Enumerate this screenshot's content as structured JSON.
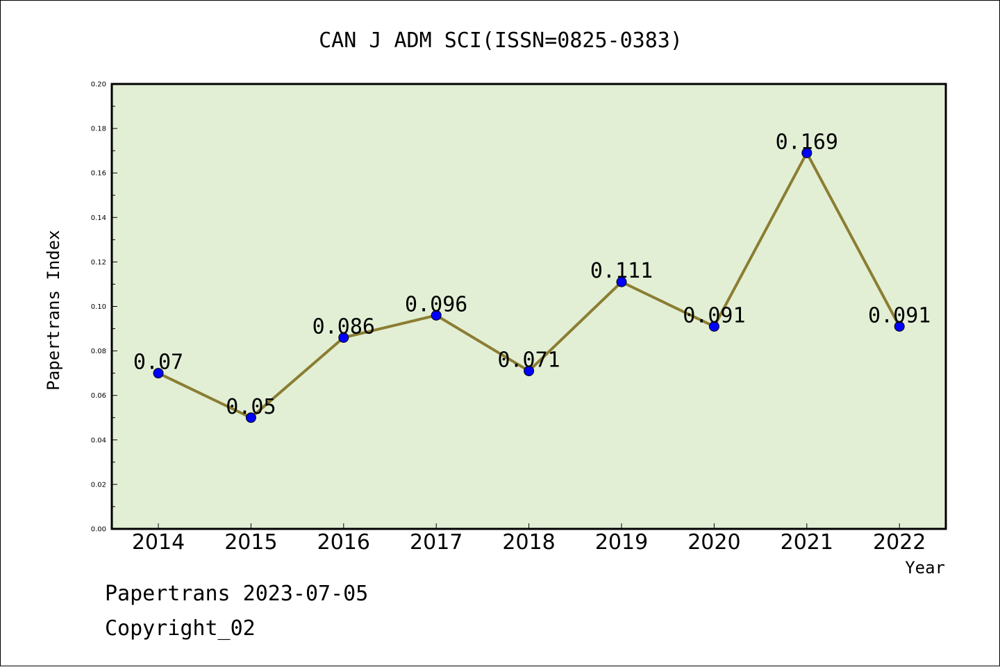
{
  "chart_data": {
    "type": "line",
    "title": "CAN J ADM SCI(ISSN=0825-0383)",
    "xlabel": "Year",
    "ylabel": "Papertrans Index",
    "categories": [
      "2014",
      "2015",
      "2016",
      "2017",
      "2018",
      "2019",
      "2020",
      "2021",
      "2022"
    ],
    "values": [
      0.07,
      0.05,
      0.086,
      0.096,
      0.071,
      0.111,
      0.091,
      0.169,
      0.091
    ],
    "data_labels": [
      "0.07",
      "0.05",
      "0.086",
      "0.096",
      "0.071",
      "0.111",
      "0.091",
      "0.169",
      "0.091"
    ],
    "ylim": [
      0,
      0.2
    ],
    "yticks": [
      "0.00",
      "0.02",
      "0.04",
      "0.06",
      "0.08",
      "0.10",
      "0.12",
      "0.14",
      "0.16",
      "0.18",
      "0.20"
    ],
    "grid": false,
    "legend": "none",
    "colors": {
      "plot_background": "#e2efd5",
      "line": "#8b7d32",
      "marker": "#0000ff"
    }
  },
  "footer": {
    "line1": "Papertrans 2023-07-05",
    "line2": "Copyright_02"
  }
}
